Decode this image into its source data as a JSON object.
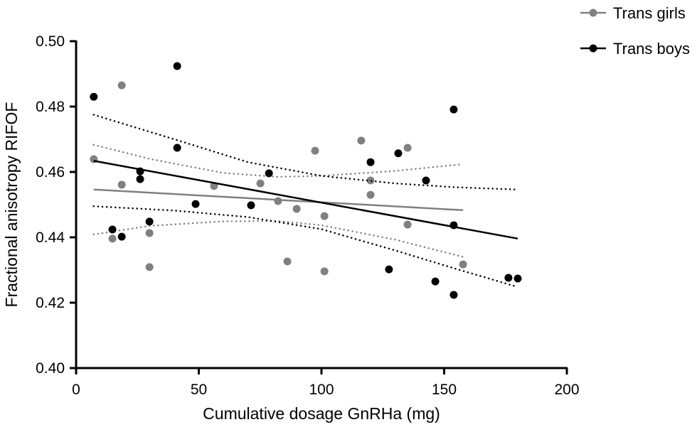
{
  "chart_data": {
    "type": "scatter",
    "title": "",
    "xlabel": "Cumulative dosage GnRHa (mg)",
    "ylabel": "Fractional anisotropy RIFOF",
    "xlim": [
      0,
      200
    ],
    "ylim": [
      0.4,
      0.5
    ],
    "xticks": [
      "0",
      "50",
      "100",
      "150",
      "200"
    ],
    "yticks": [
      "0.40",
      "0.42",
      "0.44",
      "0.46",
      "0.48",
      "0.50"
    ],
    "grid": false,
    "legend_position": "top-right",
    "series": [
      {
        "name": "Trans girls",
        "color": "#808080",
        "points": [
          [
            7.2,
            0.4639
          ],
          [
            18.6,
            0.4865
          ],
          [
            18.6,
            0.4561
          ],
          [
            14.8,
            0.4396
          ],
          [
            29.9,
            0.4413
          ],
          [
            29.9,
            0.4309
          ],
          [
            56.2,
            0.4557
          ],
          [
            75.1,
            0.4565
          ],
          [
            82.3,
            0.4511
          ],
          [
            89.9,
            0.4487
          ],
          [
            86.1,
            0.4326
          ],
          [
            97.4,
            0.4665
          ],
          [
            116.2,
            0.4696
          ],
          [
            135.1,
            0.4674
          ],
          [
            120.0,
            0.4574
          ],
          [
            120.0,
            0.453
          ],
          [
            101.2,
            0.4465
          ],
          [
            135.1,
            0.4439
          ],
          [
            101.2,
            0.4296
          ],
          [
            157.7,
            0.4317
          ]
        ],
        "fit": [
          [
            7.2,
            0.4546
          ],
          [
            157.7,
            0.4483
          ]
        ],
        "ci_upper": [
          [
            7.2,
            0.4683
          ],
          [
            30,
            0.464
          ],
          [
            60,
            0.4597
          ],
          [
            82,
            0.4585
          ],
          [
            100,
            0.4588
          ],
          [
            130,
            0.4603
          ],
          [
            157.7,
            0.4624
          ]
        ],
        "ci_lower": [
          [
            7.2,
            0.4409
          ],
          [
            30,
            0.4435
          ],
          [
            60,
            0.4449
          ],
          [
            82,
            0.445
          ],
          [
            100,
            0.4437
          ],
          [
            130,
            0.4393
          ],
          [
            157.7,
            0.434
          ]
        ]
      },
      {
        "name": "Trans boys",
        "color": "#000000",
        "points": [
          [
            7.2,
            0.483
          ],
          [
            41.2,
            0.4924
          ],
          [
            41.2,
            0.4674
          ],
          [
            26.1,
            0.4602
          ],
          [
            26.1,
            0.4578
          ],
          [
            29.9,
            0.4448
          ],
          [
            14.8,
            0.4424
          ],
          [
            18.6,
            0.4402
          ],
          [
            48.7,
            0.4502
          ],
          [
            71.3,
            0.4498
          ],
          [
            78.6,
            0.4596
          ],
          [
            120.0,
            0.463
          ],
          [
            131.3,
            0.4657
          ],
          [
            142.6,
            0.4574
          ],
          [
            153.9,
            0.4437
          ],
          [
            153.9,
            0.4791
          ],
          [
            127.5,
            0.4302
          ],
          [
            146.4,
            0.4265
          ],
          [
            153.9,
            0.4224
          ],
          [
            176.2,
            0.4276
          ],
          [
            180.0,
            0.4274
          ]
        ],
        "fit": [
          [
            7.2,
            0.4634
          ],
          [
            180.0,
            0.4396
          ]
        ],
        "ci_upper": [
          [
            7.2,
            0.4775
          ],
          [
            40,
            0.47
          ],
          [
            70,
            0.463
          ],
          [
            100,
            0.4588
          ],
          [
            130,
            0.4565
          ],
          [
            155,
            0.4553
          ],
          [
            180,
            0.4546
          ]
        ],
        "ci_lower": [
          [
            7.2,
            0.4495
          ],
          [
            40,
            0.4482
          ],
          [
            70,
            0.4462
          ],
          [
            100,
            0.4425
          ],
          [
            130,
            0.436
          ],
          [
            155,
            0.4303
          ],
          [
            180,
            0.4248
          ]
        ]
      }
    ]
  }
}
